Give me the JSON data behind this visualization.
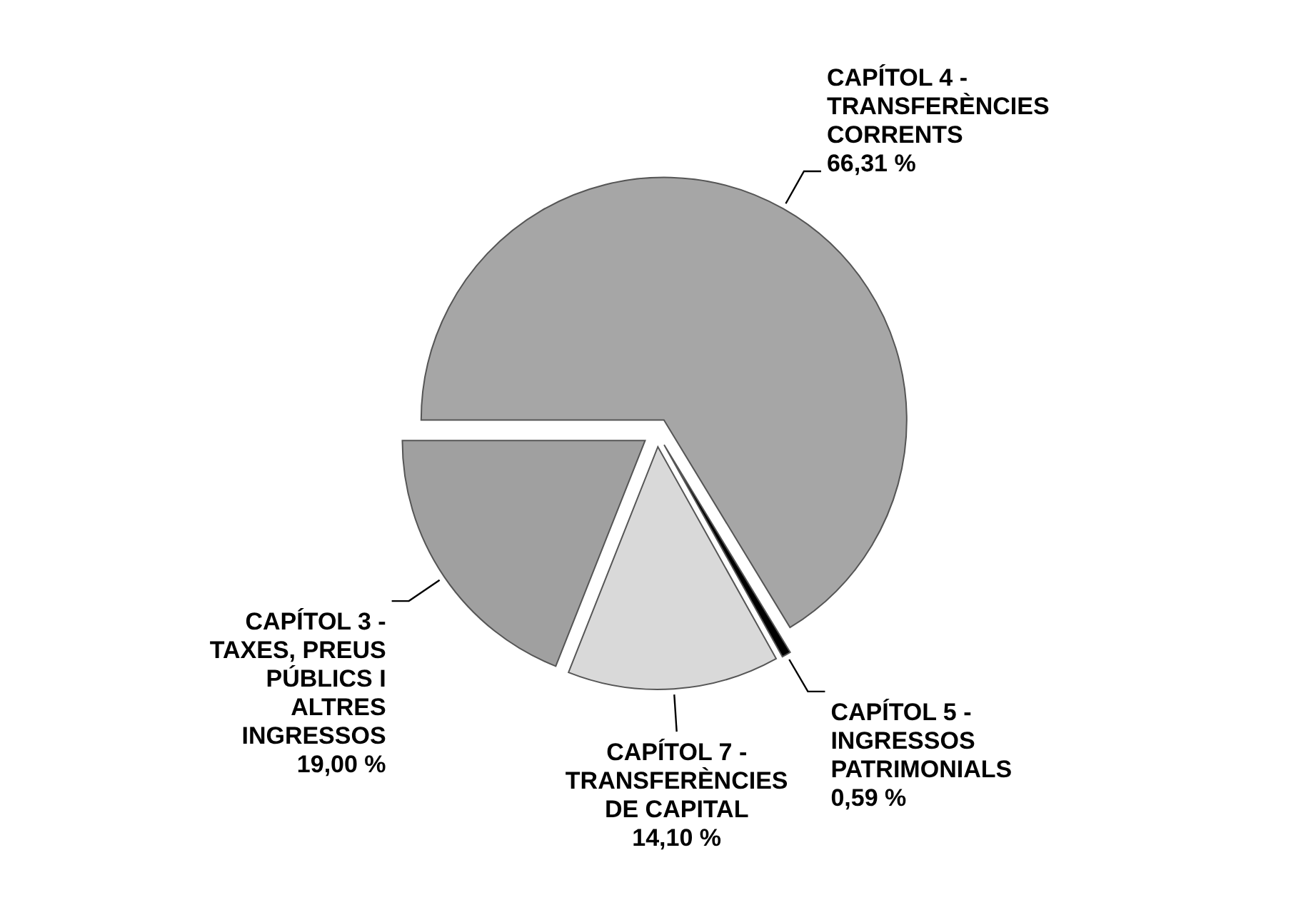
{
  "chart_data": {
    "type": "pie",
    "categories": [
      "CAPÍTOL 4 - TRANSFERÈNCIES CORRENTS",
      "CAPÍTOL 5 - INGRESSOS PATRIMONIALS",
      "CAPÍTOL 7 - TRANSFERÈNCIES DE CAPITAL",
      "CAPÍTOL 3 - TAXES, PREUS PÚBLICS I ALTRES INGRESSOS"
    ],
    "values": [
      66.31,
      0.59,
      14.1,
      19.0
    ],
    "colors": [
      "#a6a6a6",
      "#000000",
      "#d9d9d9",
      "#a0a0a0"
    ],
    "value_labels": [
      "66,31 %",
      "0,59 %",
      "14,10 %",
      "19,00 %"
    ]
  }
}
